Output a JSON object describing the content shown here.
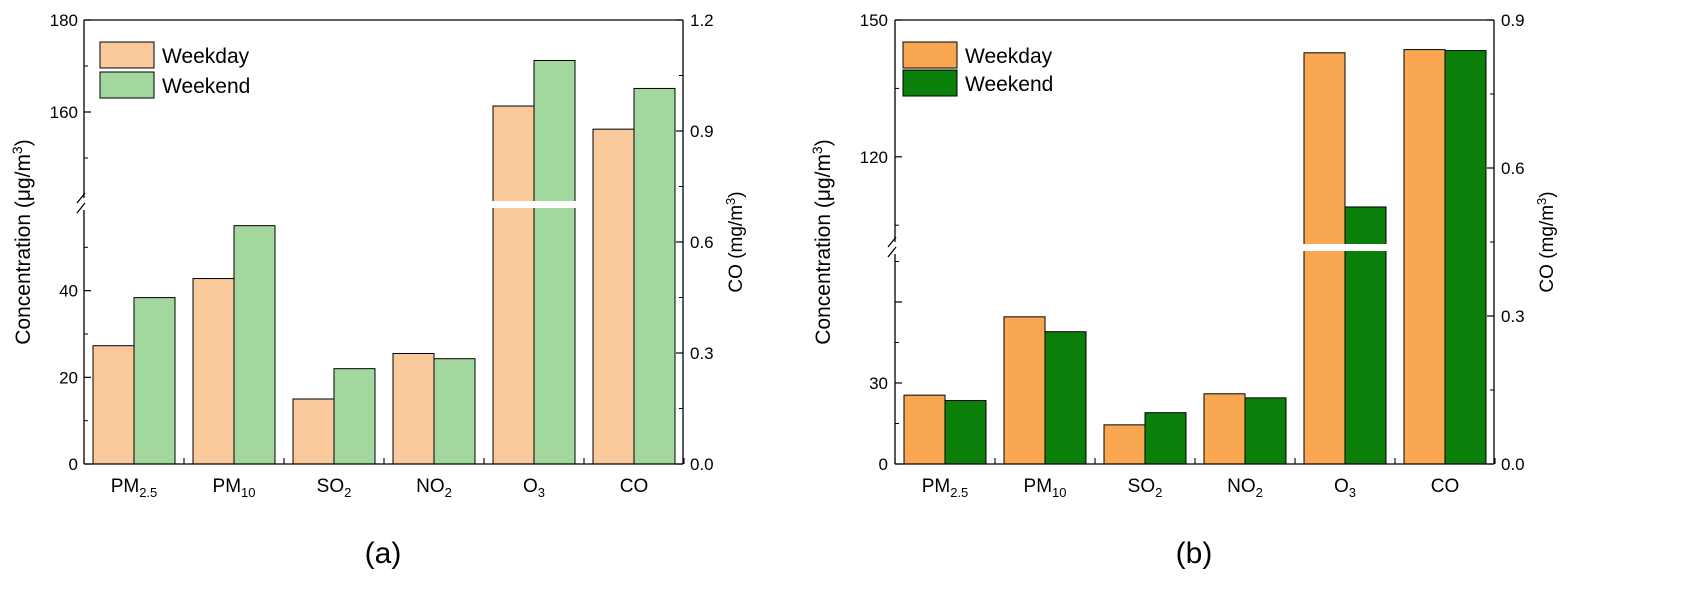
{
  "chart_data": [
    {
      "type": "bar",
      "panel_label": "(a)",
      "categories": [
        {
          "base": "PM",
          "sub": "2.5"
        },
        {
          "base": "PM",
          "sub": "10"
        },
        {
          "base": "SO",
          "sub": "2"
        },
        {
          "base": "NO",
          "sub": "2"
        },
        {
          "base": "O",
          "sub": "3"
        },
        {
          "base": "CO",
          "sub": ""
        }
      ],
      "series": [
        {
          "name": "Weekday",
          "color": "#F9C89B",
          "values": [
            27.3,
            42.8,
            15.0,
            25.5,
            161.3,
            0.905
          ],
          "value_axis": [
            "left",
            "left",
            "left",
            "left",
            "left",
            "right"
          ]
        },
        {
          "name": "Weekend",
          "color": "#A2D89E",
          "values": [
            38.4,
            55.0,
            22.0,
            24.3,
            171.2,
            1.015
          ],
          "value_axis": [
            "left",
            "left",
            "left",
            "left",
            "left",
            "right"
          ]
        }
      ],
      "y_left": {
        "label": "Concentration (μg/m",
        "label_sup": "3",
        "label_close": ")",
        "broken": true,
        "lower_range": [
          0,
          60
        ],
        "upper_range": [
          140,
          180
        ],
        "lower_ticks": [
          "0",
          "20",
          "40"
        ],
        "upper_ticks": [
          "160",
          "180"
        ]
      },
      "y_right": {
        "label": "CO (mg/m",
        "label_sup": "3",
        "label_close": ")",
        "range": [
          0,
          1.2
        ],
        "ticks": [
          "0.0",
          "0.3",
          "0.6",
          "0.9",
          "1.2"
        ]
      },
      "legend_position": "top-left",
      "grid": false
    },
    {
      "type": "bar",
      "panel_label": "(b)",
      "categories": [
        {
          "base": "PM",
          "sub": "2.5"
        },
        {
          "base": "PM",
          "sub": "10"
        },
        {
          "base": "SO",
          "sub": "2"
        },
        {
          "base": "NO",
          "sub": "2"
        },
        {
          "base": "O",
          "sub": "3"
        },
        {
          "base": "CO",
          "sub": ""
        }
      ],
      "series": [
        {
          "name": "Weekday",
          "color": "#F9A750",
          "values": [
            25.5,
            54.5,
            14.5,
            26.0,
            142.8,
            0.84
          ],
          "value_axis": [
            "left",
            "left",
            "left",
            "left",
            "left",
            "right"
          ]
        },
        {
          "name": "Weekend",
          "color": "#0A7F0A",
          "values": [
            23.5,
            49.0,
            19.0,
            24.5,
            109.0,
            0.838
          ],
          "value_axis": [
            "left",
            "left",
            "left",
            "left",
            "left",
            "right"
          ]
        }
      ],
      "y_left": {
        "label": "Concentration (μg/m",
        "label_sup": "3",
        "label_close": ")",
        "broken": true,
        "lower_range": [
          0,
          80
        ],
        "upper_range": [
          100,
          150
        ],
        "lower_ticks": [
          "0",
          "30"
        ],
        "upper_ticks": [
          "120",
          "150"
        ]
      },
      "y_right": {
        "label": "CO (mg/m",
        "label_sup": "3",
        "label_close": ")",
        "range": [
          0,
          0.9
        ],
        "ticks": [
          "0.0",
          "0.3",
          "0.6",
          "0.9"
        ]
      },
      "legend_position": "top-left",
      "grid": false
    }
  ]
}
